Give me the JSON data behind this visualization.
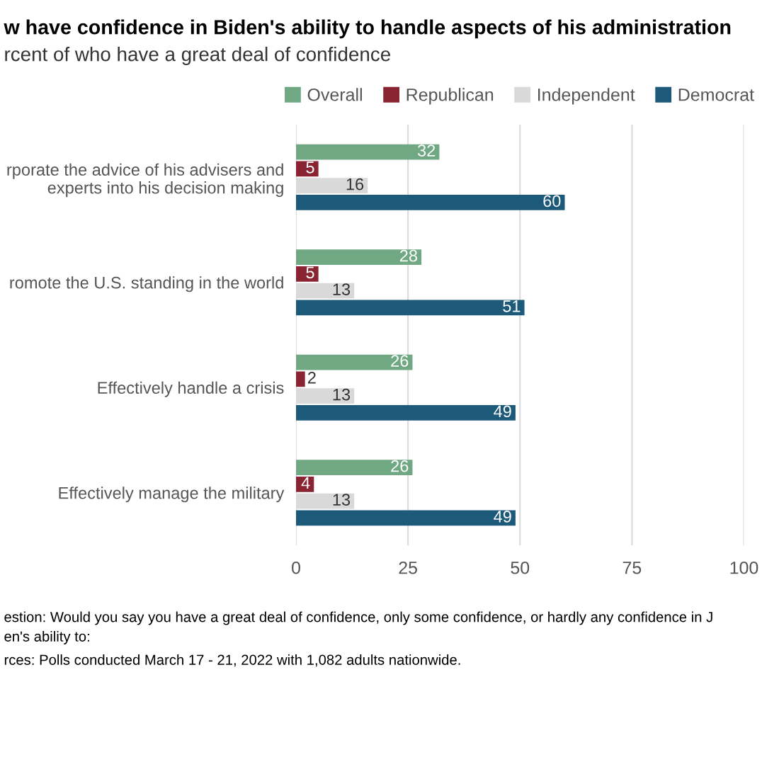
{
  "chart_data": {
    "type": "bar",
    "orientation": "horizontal",
    "title": "w have confidence in Biden's ability to handle aspects of his administration",
    "subtitle": "rcent of who have a great deal of confidence",
    "categories": [
      "rporate the advice of his advisers and\nexperts into his decision making",
      "romote the U.S. standing in the world",
      "Effectively handle a crisis",
      "Effectively manage the military"
    ],
    "series": [
      {
        "name": "Overall",
        "color": "#6fa882",
        "values": [
          32,
          28,
          26,
          26
        ]
      },
      {
        "name": "Republican",
        "color": "#8a2432",
        "values": [
          5,
          5,
          2,
          4
        ]
      },
      {
        "name": "Independent",
        "color": "#d9d9d9",
        "values": [
          16,
          13,
          13,
          13
        ]
      },
      {
        "name": "Democrat",
        "color": "#1d5a7a",
        "values": [
          60,
          51,
          49,
          49
        ]
      }
    ],
    "xlim": [
      0,
      100
    ],
    "xticks": [
      0,
      25,
      50,
      75,
      100
    ],
    "grid": "x",
    "legend": "top",
    "data_labels": true,
    "annotations": [
      "estion: Would you say you have a great deal of confidence, only some confidence, or hardly any confidence in J",
      "en's ability to:",
      "rces: Polls conducted March 17 - 21, 2022 with 1,082 adults nationwide."
    ]
  }
}
